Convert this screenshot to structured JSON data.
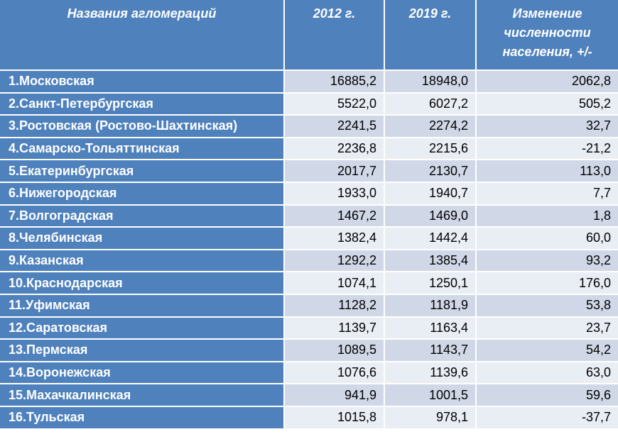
{
  "table": {
    "headers": [
      "Названия агломераций",
      "2012 г.",
      "2019 г.",
      "Изменение численности населения, +/-"
    ],
    "rows": [
      {
        "name": "1.Московская",
        "y2012": "16885,2",
        "y2019": "18948,0",
        "change": "2062,8"
      },
      {
        "name": "2.Санкт-Петербургская",
        "y2012": "5522,0",
        "y2019": "6027,2",
        "change": "505,2"
      },
      {
        "name": "3.Ростовская (Ростово-Шахтинская)",
        "y2012": "2241,5",
        "y2019": "2274,2",
        "change": "32,7"
      },
      {
        "name": "4.Самарско-Тольяттинская",
        "y2012": "2236,8",
        "y2019": "2215,6",
        "change": "-21,2"
      },
      {
        "name": "5.Екатеринбургская",
        "y2012": "2017,7",
        "y2019": "2130,7",
        "change": "113,0"
      },
      {
        "name": "6.Нижегородская",
        "y2012": "1933,0",
        "y2019": "1940,7",
        "change": "7,7"
      },
      {
        "name": "7.Волгоградская",
        "y2012": "1467,2",
        "y2019": "1469,0",
        "change": "1,8"
      },
      {
        "name": "8.Челябинская",
        "y2012": "1382,4",
        "y2019": "1442,4",
        "change": "60,0"
      },
      {
        "name": "9.Казанская",
        "y2012": "1292,2",
        "y2019": "1385,4",
        "change": "93,2"
      },
      {
        "name": "10.Краснодарская",
        "y2012": "1074,1",
        "y2019": "1250,1",
        "change": "176,0"
      },
      {
        "name": "11.Уфимская",
        "y2012": "1128,2",
        "y2019": "1181,9",
        "change": "53,8"
      },
      {
        "name": "12.Саратовская",
        "y2012": "1139,7",
        "y2019": "1163,4",
        "change": "23,7"
      },
      {
        "name": "13.Пермская",
        "y2012": "1089,5",
        "y2019": "1143,7",
        "change": "54,2"
      },
      {
        "name": "14.Воронежская",
        "y2012": "1076,6",
        "y2019": "1139,6",
        "change": "63,0"
      },
      {
        "name": "15.Махачкалинская",
        "y2012": "941,9",
        "y2019": "1001,5",
        "change": "59,6"
      },
      {
        "name": "16.Тульская",
        "y2012": "1015,8",
        "y2019": "978,1",
        "change": "-37,7"
      }
    ]
  },
  "colors": {
    "header_bg": "#4f81bd",
    "row_band_dark": "#d0d8e8",
    "row_band_light": "#e9edf4"
  }
}
